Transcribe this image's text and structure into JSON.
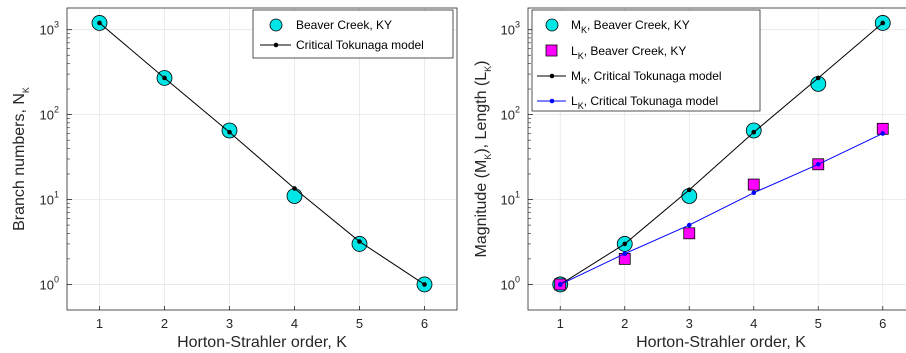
{
  "colors": {
    "cyan_marker": "#00e5e5",
    "magenta_marker": "#ff00ff",
    "black_line": "#000000",
    "blue_line": "#0000ff",
    "grid": "#e6e6e6",
    "axis": "#262626"
  },
  "chart_data": [
    {
      "type": "line",
      "scale": "log-y",
      "xlabel": "Horton-Strahler order, K",
      "ylabel": {
        "main": "Branch numbers, N",
        "sub": "K"
      },
      "x_ticks": [
        "1",
        "2",
        "3",
        "4",
        "5",
        "6"
      ],
      "y_ticks": [
        {
          "base": "10",
          "exp": "0"
        },
        {
          "base": "10",
          "exp": "1"
        },
        {
          "base": "10",
          "exp": "2"
        },
        {
          "base": "10",
          "exp": "3"
        }
      ],
      "xlim": [
        0.5,
        6.5
      ],
      "ylim": [
        0.5,
        1800
      ],
      "grid": true,
      "legend_position": "top-right",
      "series": [
        {
          "name": "Beaver Creek, KY",
          "style": "marker",
          "marker": "circle",
          "color": "cyan",
          "x": [
            1,
            2,
            3,
            4,
            5,
            6
          ],
          "y": [
            1200,
            270,
            65,
            11,
            3,
            1
          ]
        },
        {
          "name": "Critical Tokunaga model",
          "style": "line-dot",
          "color": "black",
          "x": [
            1,
            2,
            3,
            4,
            5,
            6
          ],
          "y": [
            1200,
            270,
            62,
            13.5,
            3.2,
            1
          ]
        }
      ]
    },
    {
      "type": "line",
      "scale": "log-y",
      "xlabel": "Horton-Strahler order, K",
      "ylabel": {
        "p1": "Magnitude (M",
        "s1": "K",
        "p2": "), Length (L",
        "s2": "K",
        "p3": ")"
      },
      "x_ticks": [
        "1",
        "2",
        "3",
        "4",
        "5",
        "6"
      ],
      "y_ticks": [
        {
          "base": "10",
          "exp": "0"
        },
        {
          "base": "10",
          "exp": "1"
        },
        {
          "base": "10",
          "exp": "2"
        },
        {
          "base": "10",
          "exp": "3"
        }
      ],
      "xlim": [
        0.5,
        6.5
      ],
      "ylim": [
        0.5,
        1800
      ],
      "grid": true,
      "legend_position": "top-left",
      "series": [
        {
          "name": {
            "a": "M",
            "sub": "K",
            "b": ", Beaver Creek, KY"
          },
          "style": "marker",
          "marker": "circle",
          "color": "cyan",
          "x": [
            1,
            2,
            3,
            4,
            5,
            6
          ],
          "y": [
            1,
            3,
            11,
            65,
            230,
            1200
          ]
        },
        {
          "name": {
            "a": "L",
            "sub": "K",
            "b": ", Beaver Creek, KY"
          },
          "style": "marker",
          "marker": "square",
          "color": "magenta",
          "x": [
            1,
            2,
            3,
            4,
            5,
            6
          ],
          "y": [
            1,
            2,
            4,
            15,
            26,
            68
          ]
        },
        {
          "name": {
            "a": "M",
            "sub": "K",
            "b": ", Critical Tokunaga model"
          },
          "style": "line-dot",
          "color": "black",
          "x": [
            1,
            2,
            3,
            4,
            5,
            6
          ],
          "y": [
            1,
            3,
            13,
            62,
            270,
            1200
          ]
        },
        {
          "name": {
            "a": "L",
            "sub": "K",
            "b": ", Critical Tokunaga model"
          },
          "style": "line-dot",
          "color": "blue",
          "x": [
            1,
            2,
            3,
            4,
            5,
            6
          ],
          "y": [
            1,
            2.3,
            5,
            12,
            26,
            60
          ]
        }
      ]
    }
  ]
}
